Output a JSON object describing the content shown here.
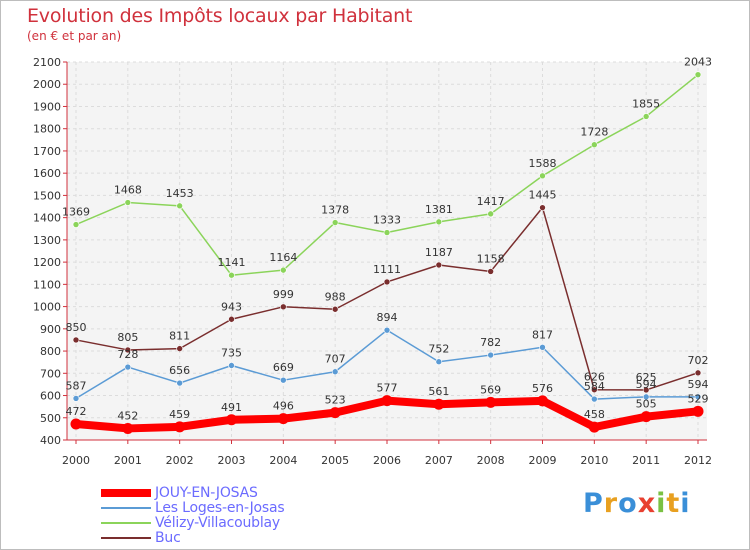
{
  "chart_data": {
    "type": "line",
    "title": "Evolution des Impôts locaux par Habitant",
    "subtitle": "(en € et par an)",
    "xlabel": "",
    "ylabel": "",
    "x": [
      "2000",
      "2001",
      "2002",
      "2003",
      "2004",
      "2005",
      "2006",
      "2007",
      "2008",
      "2009",
      "2010",
      "2011",
      "2012"
    ],
    "ylim": [
      400,
      2100
    ],
    "yticks": [
      400,
      500,
      600,
      700,
      800,
      900,
      1000,
      1100,
      1200,
      1300,
      1400,
      1500,
      1600,
      1700,
      1800,
      1900,
      2000,
      2100
    ],
    "grid": true,
    "legend_position": "bottom-left",
    "series": [
      {
        "name": "JOUY-EN-JOSAS",
        "color": "#ff0000",
        "values": [
          472,
          452,
          459,
          491,
          496,
          523,
          577,
          561,
          569,
          576,
          458,
          505,
          529
        ]
      },
      {
        "name": "Les Loges-en-Josas",
        "color": "#5b9bd5",
        "values": [
          587,
          728,
          656,
          735,
          669,
          707,
          894,
          752,
          782,
          817,
          584,
          594,
          594
        ]
      },
      {
        "name": "Vélizy-Villacoublay",
        "color": "#8bd45a",
        "values": [
          1369,
          1468,
          1453,
          1141,
          1164,
          1378,
          1333,
          1381,
          1417,
          1588,
          1728,
          1855,
          2043
        ]
      },
      {
        "name": "Buc",
        "color": "#7a2e2e",
        "values": [
          850,
          805,
          811,
          943,
          999,
          988,
          1111,
          1187,
          1158,
          1445,
          626,
          625,
          702
        ]
      }
    ]
  },
  "logo": {
    "letters": [
      "P",
      "r",
      "o",
      "x",
      "i",
      "t",
      "i"
    ],
    "colors": [
      "#3a8fd8",
      "#e8a020",
      "#3a8fd8",
      "#e84030",
      "#7ac143",
      "#e8a020",
      "#3a8fd8"
    ]
  }
}
